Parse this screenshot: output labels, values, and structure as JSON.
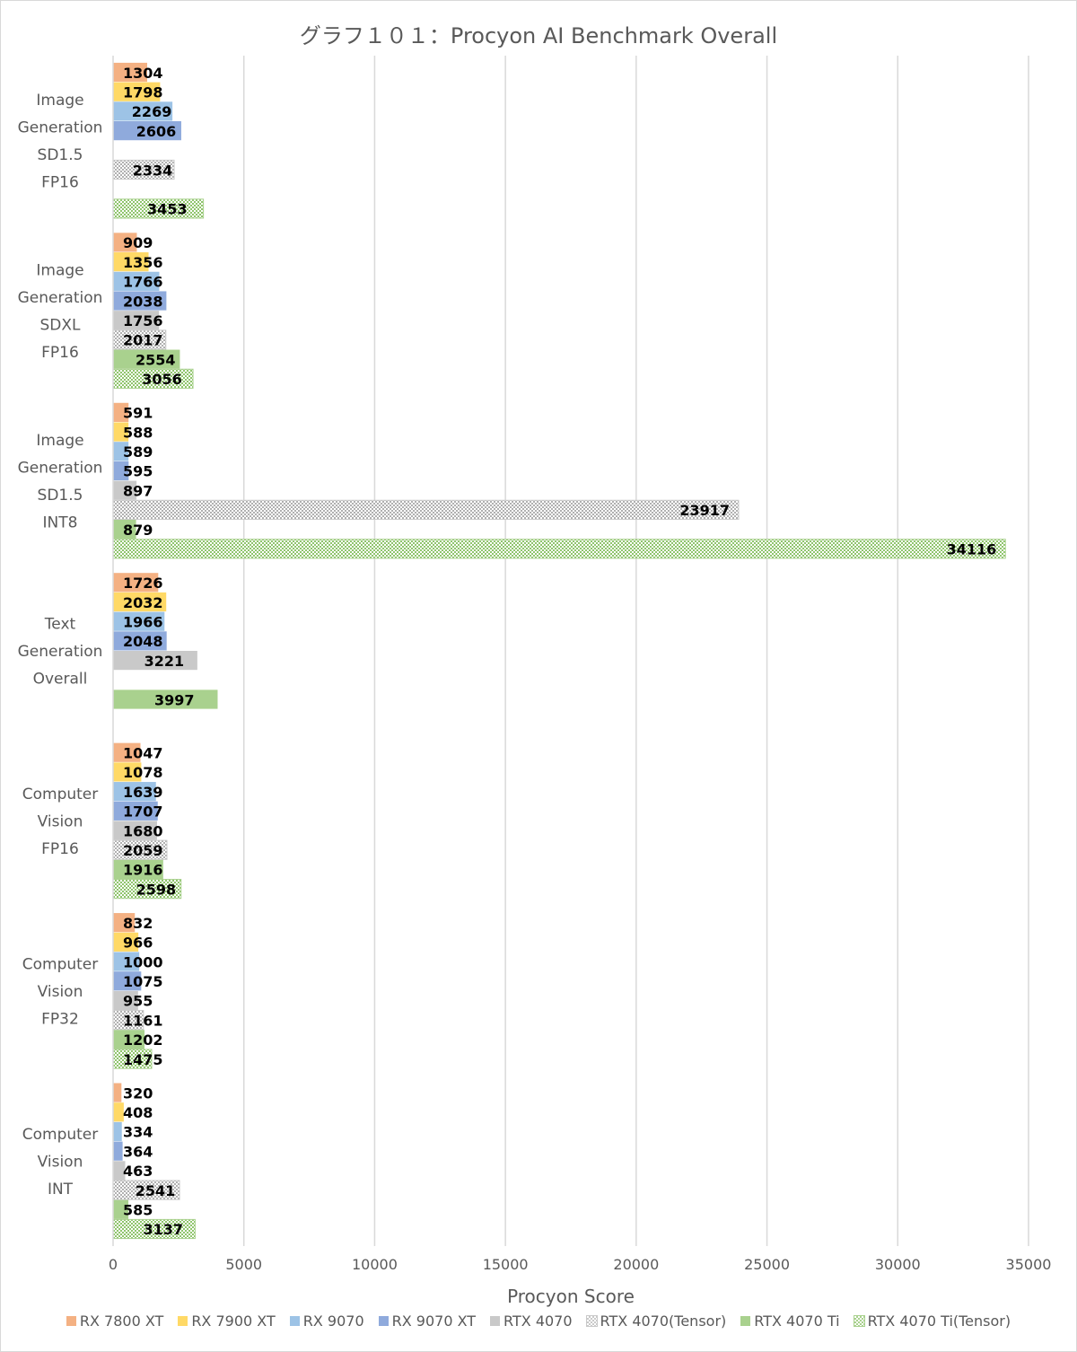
{
  "chart_data": {
    "type": "bar",
    "orientation": "horizontal",
    "title": "グラフ１０１：Procyon AI Benchmark Overall",
    "xlabel": "Procyon Score",
    "ylabel": "",
    "xlim": [
      0,
      35000
    ],
    "xticks": [
      "0",
      "5000",
      "10000",
      "15000",
      "20000",
      "25000",
      "30000",
      "35000"
    ],
    "grid": true,
    "legend_position": "bottom",
    "categories": [
      [
        "Image",
        "Generation",
        "SD1.5",
        "FP16"
      ],
      [
        "Image",
        "Generation",
        "SDXL",
        "FP16"
      ],
      [
        "Image",
        "Generation",
        "SD1.5",
        "INT8"
      ],
      [
        "Text",
        "Generation",
        "Overall"
      ],
      [
        "Computer",
        "Vision",
        "FP16"
      ],
      [
        "Computer",
        "Vision",
        "FP32"
      ],
      [
        "Computer",
        "Vision",
        "INT"
      ]
    ],
    "series": [
      {
        "name": "RX 7800 XT",
        "color": "#f4b183",
        "pattern": "solid",
        "values": [
          1304,
          909,
          591,
          1726,
          1047,
          832,
          320
        ]
      },
      {
        "name": "RX 7900 XT",
        "color": "#ffd966",
        "pattern": "solid",
        "values": [
          1798,
          1356,
          588,
          2032,
          1078,
          966,
          408
        ]
      },
      {
        "name": "RX 9070",
        "color": "#9dc3e6",
        "pattern": "solid",
        "values": [
          2269,
          1766,
          589,
          1966,
          1639,
          1000,
          334
        ]
      },
      {
        "name": "RX 9070 XT",
        "color": "#8faadc",
        "pattern": "solid",
        "values": [
          2606,
          2038,
          595,
          2048,
          1707,
          1075,
          364
        ]
      },
      {
        "name": "RTX 4070",
        "color": "#c9c9c9",
        "pattern": "solid",
        "values": [
          null,
          1756,
          897,
          3221,
          1680,
          955,
          463
        ]
      },
      {
        "name": "RTX 4070(Tensor)",
        "color": "#c9c9c9",
        "pattern": "checker",
        "values": [
          2334,
          2017,
          23917,
          null,
          2059,
          1161,
          2541
        ]
      },
      {
        "name": "RTX 4070 Ti",
        "color": "#a9d18e",
        "pattern": "solid",
        "values": [
          null,
          2554,
          879,
          3997,
          1916,
          1202,
          585
        ]
      },
      {
        "name": "RTX 4070 Ti(Tensor)",
        "color": "#a9d18e",
        "pattern": "checker",
        "values": [
          3453,
          3056,
          34116,
          null,
          2598,
          1475,
          3137
        ]
      }
    ]
  }
}
